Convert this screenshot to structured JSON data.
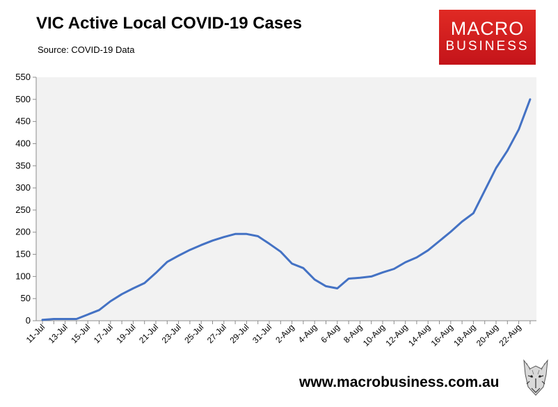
{
  "header": {
    "title": "VIC Active Local COVID-19 Cases",
    "subtitle": "Source: COVID-19 Data"
  },
  "logo": {
    "line1": "MACRO",
    "line2": "BUSINESS"
  },
  "footer": {
    "website": "www.macrobusiness.com.au"
  },
  "colors": {
    "line": "#4472c4",
    "plot_bg": "#f2f2f2",
    "brand": "#d71d20"
  },
  "chart_data": {
    "type": "line",
    "title": "VIC Active Local COVID-19 Cases",
    "xlabel": "",
    "ylabel": "",
    "ylim": [
      0,
      550
    ],
    "yticks": [
      0,
      50,
      100,
      150,
      200,
      250,
      300,
      350,
      400,
      450,
      500,
      550
    ],
    "grid": false,
    "legend": "none",
    "x": [
      "11-Jul",
      "12-Jul",
      "13-Jul",
      "14-Jul",
      "15-Jul",
      "16-Jul",
      "17-Jul",
      "18-Jul",
      "19-Jul",
      "20-Jul",
      "21-Jul",
      "22-Jul",
      "23-Jul",
      "24-Jul",
      "25-Jul",
      "26-Jul",
      "27-Jul",
      "28-Jul",
      "29-Jul",
      "30-Jul",
      "31-Jul",
      "1-Aug",
      "2-Aug",
      "3-Aug",
      "4-Aug",
      "5-Aug",
      "6-Aug",
      "7-Aug",
      "8-Aug",
      "9-Aug",
      "10-Aug",
      "11-Aug",
      "12-Aug",
      "13-Aug",
      "14-Aug",
      "15-Aug",
      "16-Aug",
      "17-Aug",
      "18-Aug",
      "19-Aug",
      "20-Aug",
      "21-Aug",
      "22-Aug",
      "23-Aug"
    ],
    "xtick_labels": [
      "11-Jul",
      "13-Jul",
      "15-Jul",
      "17-Jul",
      "19-Jul",
      "21-Jul",
      "23-Jul",
      "25-Jul",
      "27-Jul",
      "29-Jul",
      "31-Jul",
      "2-Aug",
      "4-Aug",
      "6-Aug",
      "8-Aug",
      "10-Aug",
      "12-Aug",
      "14-Aug",
      "16-Aug",
      "18-Aug",
      "20-Aug",
      "22-Aug"
    ],
    "series": [
      {
        "values": [
          2,
          4,
          4,
          4,
          14,
          24,
          44,
          60,
          73,
          85,
          108,
          133,
          147,
          160,
          171,
          181,
          189,
          196,
          196,
          191,
          174,
          156,
          129,
          119,
          93,
          78,
          73,
          95,
          97,
          100,
          109,
          117,
          132,
          143,
          159,
          180,
          201,
          224,
          243,
          294,
          345,
          384,
          432,
          500
        ]
      }
    ]
  }
}
